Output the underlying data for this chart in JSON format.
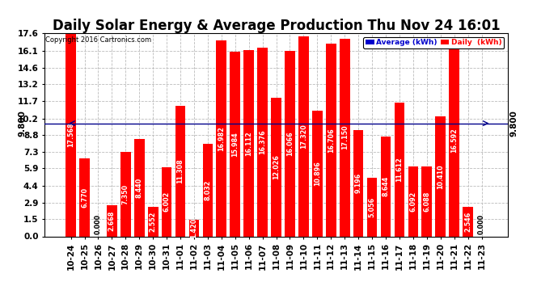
{
  "title": "Daily Solar Energy & Average Production Thu Nov 24 16:01",
  "copyright": "Copyright 2016 Cartronics.com",
  "categories": [
    "10-24",
    "10-25",
    "10-26",
    "10-27",
    "10-28",
    "10-29",
    "10-30",
    "10-31",
    "11-01",
    "11-02",
    "11-03",
    "11-04",
    "11-05",
    "11-06",
    "11-07",
    "11-08",
    "11-09",
    "11-10",
    "11-11",
    "11-12",
    "11-13",
    "11-14",
    "11-15",
    "11-16",
    "11-17",
    "11-18",
    "11-19",
    "11-20",
    "11-21",
    "11-22",
    "11-23"
  ],
  "values": [
    17.568,
    6.77,
    0.0,
    2.668,
    7.35,
    8.44,
    2.552,
    6.002,
    11.308,
    1.42,
    8.032,
    16.982,
    15.984,
    16.112,
    16.376,
    12.026,
    16.066,
    17.32,
    10.896,
    16.706,
    17.15,
    9.196,
    5.056,
    8.644,
    11.612,
    6.092,
    6.088,
    10.41,
    16.592,
    2.546,
    0.0
  ],
  "average_line": 9.8,
  "bar_color": "#FF0000",
  "average_line_color": "#00008B",
  "background_color": "#FFFFFF",
  "plot_bg_color": "#FFFFFF",
  "grid_color": "#BBBBBB",
  "ylim": [
    0.0,
    17.6
  ],
  "yticks": [
    0.0,
    1.5,
    2.9,
    4.4,
    5.9,
    7.3,
    8.8,
    10.2,
    11.7,
    13.2,
    14.6,
    16.1,
    17.6
  ],
  "legend_average_color": "#0000CC",
  "legend_daily_color": "#FF0000",
  "avg_label": "Average (kWh)",
  "daily_label": "Daily  (kWh)",
  "right_axis_label": "9.800",
  "title_fontsize": 12,
  "tick_fontsize": 7.5,
  "bar_value_fontsize": 5.8,
  "avg_line_value": "9.800"
}
